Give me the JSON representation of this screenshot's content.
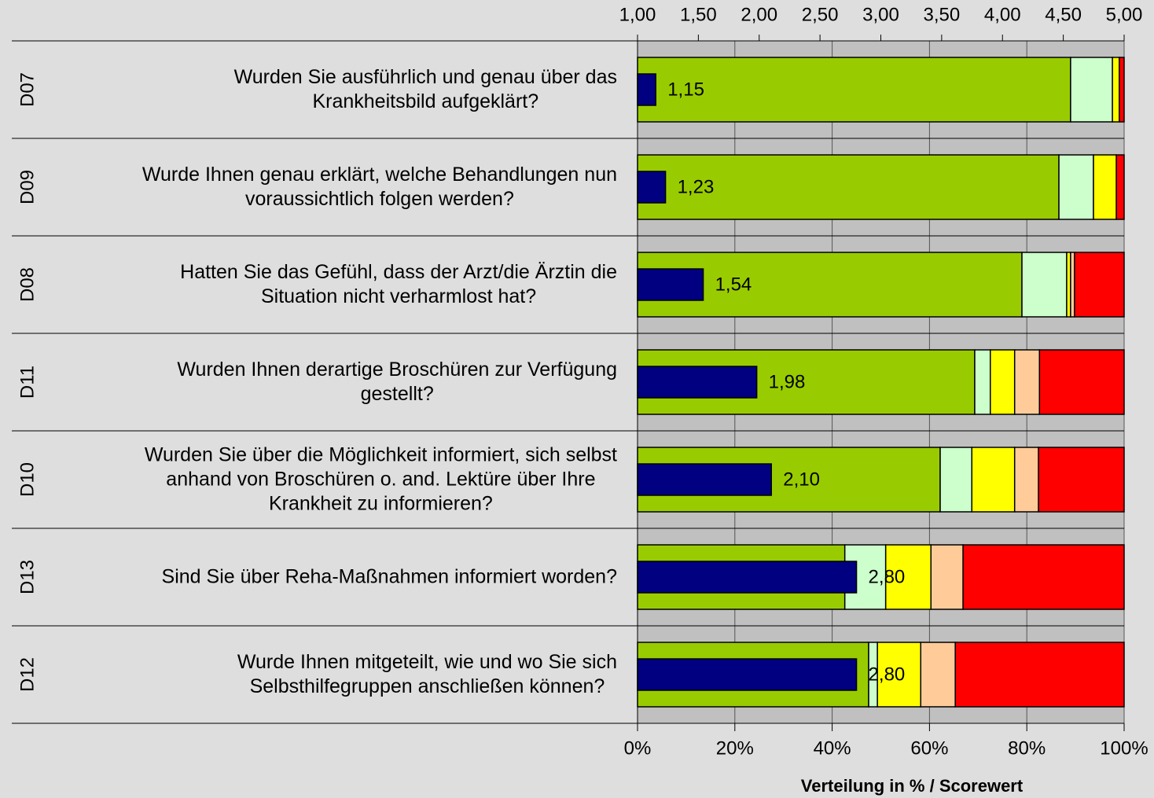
{
  "chart_data": {
    "type": "bar",
    "orientation": "horizontal",
    "stacked": true,
    "codes": [
      "D07",
      "D09",
      "D08",
      "D11",
      "D10",
      "D13",
      "D12"
    ],
    "categories": [
      "Wurden Sie ausführlich und genau über das\nKrankheitsbild aufgeklärt?",
      "Wurde Ihnen genau erklärt, welche Behandlungen nun\nvoraussichtlich folgen werden?",
      "Hatten Sie das Gefühl, dass der Arzt/die Ärztin die\nSituation nicht verharmlost hat?",
      "Wurden Ihnen derartige Broschüren zur Verfügung\ngestellt?",
      "Wurden Sie über die Möglichkeit informiert, sich selbst\nanhand von Broschüren o. and. Lektüre über Ihre\nKrankheit zu informieren?",
      "Sind Sie über Reha-Maßnahmen informiert worden?",
      "Wurde Ihnen mitgeteilt, wie und wo Sie sich\nSelbsthilfegruppen anschließen können?"
    ],
    "series": [
      {
        "color": "#99cc00",
        "values": [
          89.0,
          86.6,
          79.0,
          69.3,
          62.2,
          42.6,
          47.5
        ]
      },
      {
        "color": "#ccffcc",
        "values": [
          8.6,
          7.1,
          9.2,
          3.2,
          6.5,
          8.4,
          1.8
        ]
      },
      {
        "color": "#ffff00",
        "values": [
          1.4,
          4.7,
          0.8,
          5.0,
          8.8,
          9.3,
          8.9
        ]
      },
      {
        "color": "#ffcc99",
        "values": [
          0,
          0,
          0.8,
          5.1,
          4.9,
          6.6,
          7.1
        ]
      },
      {
        "color": "#ff0000",
        "values": [
          1.0,
          1.6,
          10.2,
          17.4,
          17.6,
          33.1,
          34.7
        ]
      }
    ],
    "xlim": [
      0,
      100
    ],
    "xticks": [
      {
        "value": 0,
        "label": "0%"
      },
      {
        "value": 20,
        "label": "20%"
      },
      {
        "value": 40,
        "label": "40%"
      },
      {
        "value": 60,
        "label": "60%"
      },
      {
        "value": 80,
        "label": "80%"
      },
      {
        "value": 100,
        "label": "100%"
      }
    ],
    "score": {
      "color": "#000080",
      "values": [
        1.15,
        1.23,
        1.54,
        1.98,
        2.1,
        2.8,
        2.8
      ],
      "value_labels": [
        "1,15",
        "1,23",
        "1,54",
        "1,98",
        "2,10",
        "2,80",
        "2,80"
      ],
      "xlim": [
        1,
        5
      ],
      "xticks": [
        {
          "value": 1,
          "label": "1,00"
        },
        {
          "value": 1.5,
          "label": "1,50"
        },
        {
          "value": 2,
          "label": "2,00"
        },
        {
          "value": 2.5,
          "label": "2,50"
        },
        {
          "value": 3,
          "label": "3,00"
        },
        {
          "value": 3.5,
          "label": "3,50"
        },
        {
          "value": 4,
          "label": "4,00"
        },
        {
          "value": 4.5,
          "label": "4,50"
        },
        {
          "value": 5,
          "label": "5,00"
        }
      ]
    },
    "xlabel": "Verteilung in % / Scorewert",
    "grid": true
  }
}
